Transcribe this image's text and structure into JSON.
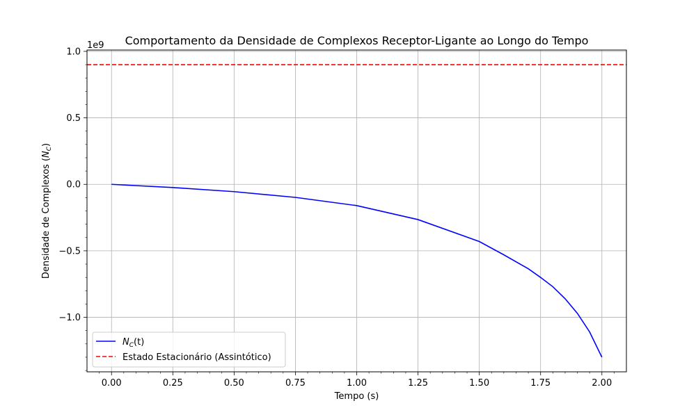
{
  "chart_data": {
    "type": "line",
    "title": "Comportamento da Densidade de Complexos Receptor-Ligante ao Longo do Tempo",
    "xlabel": "Tempo (s)",
    "ylabel_prefix": "Densidade de Complexos (",
    "ylabel_var": "N",
    "ylabel_sub": "C",
    "ylabel_suffix": ")",
    "y_offset_label": "1e9",
    "y_scale_factor": 1000000000,
    "xlim": [
      -0.1,
      2.1
    ],
    "ylim": [
      -1.41,
      1.01
    ],
    "xticks": [
      0.0,
      0.25,
      0.5,
      0.75,
      1.0,
      1.25,
      1.5,
      1.75,
      2.0
    ],
    "xtick_labels": [
      "0.00",
      "0.25",
      "0.50",
      "0.75",
      "1.00",
      "1.25",
      "1.50",
      "1.75",
      "2.00"
    ],
    "yticks": [
      -1.0,
      -0.5,
      0.0,
      0.5,
      1.0
    ],
    "ytick_labels": [
      "−1.0",
      "−0.5",
      "0.0",
      "0.5",
      "1.0"
    ],
    "grid": true,
    "legend_position": "lower-left",
    "series": [
      {
        "name_var": "N",
        "name_sub": "C",
        "name_arg": "(t)",
        "color": "#0000ff",
        "style": "solid",
        "x": [
          0.0,
          0.25,
          0.5,
          0.75,
          1.0,
          1.25,
          1.5,
          1.6,
          1.7,
          1.75,
          1.8,
          1.85,
          1.9,
          1.95,
          2.0
        ],
        "y": [
          0.0,
          -0.024,
          -0.055,
          -0.098,
          -0.16,
          -0.265,
          -0.43,
          -0.53,
          -0.635,
          -0.7,
          -0.77,
          -0.86,
          -0.97,
          -1.11,
          -1.3
        ]
      },
      {
        "name": "Estado Estacionário (Assintótico)",
        "color": "#ff0000",
        "style": "dashed",
        "hline": 0.9
      }
    ]
  }
}
